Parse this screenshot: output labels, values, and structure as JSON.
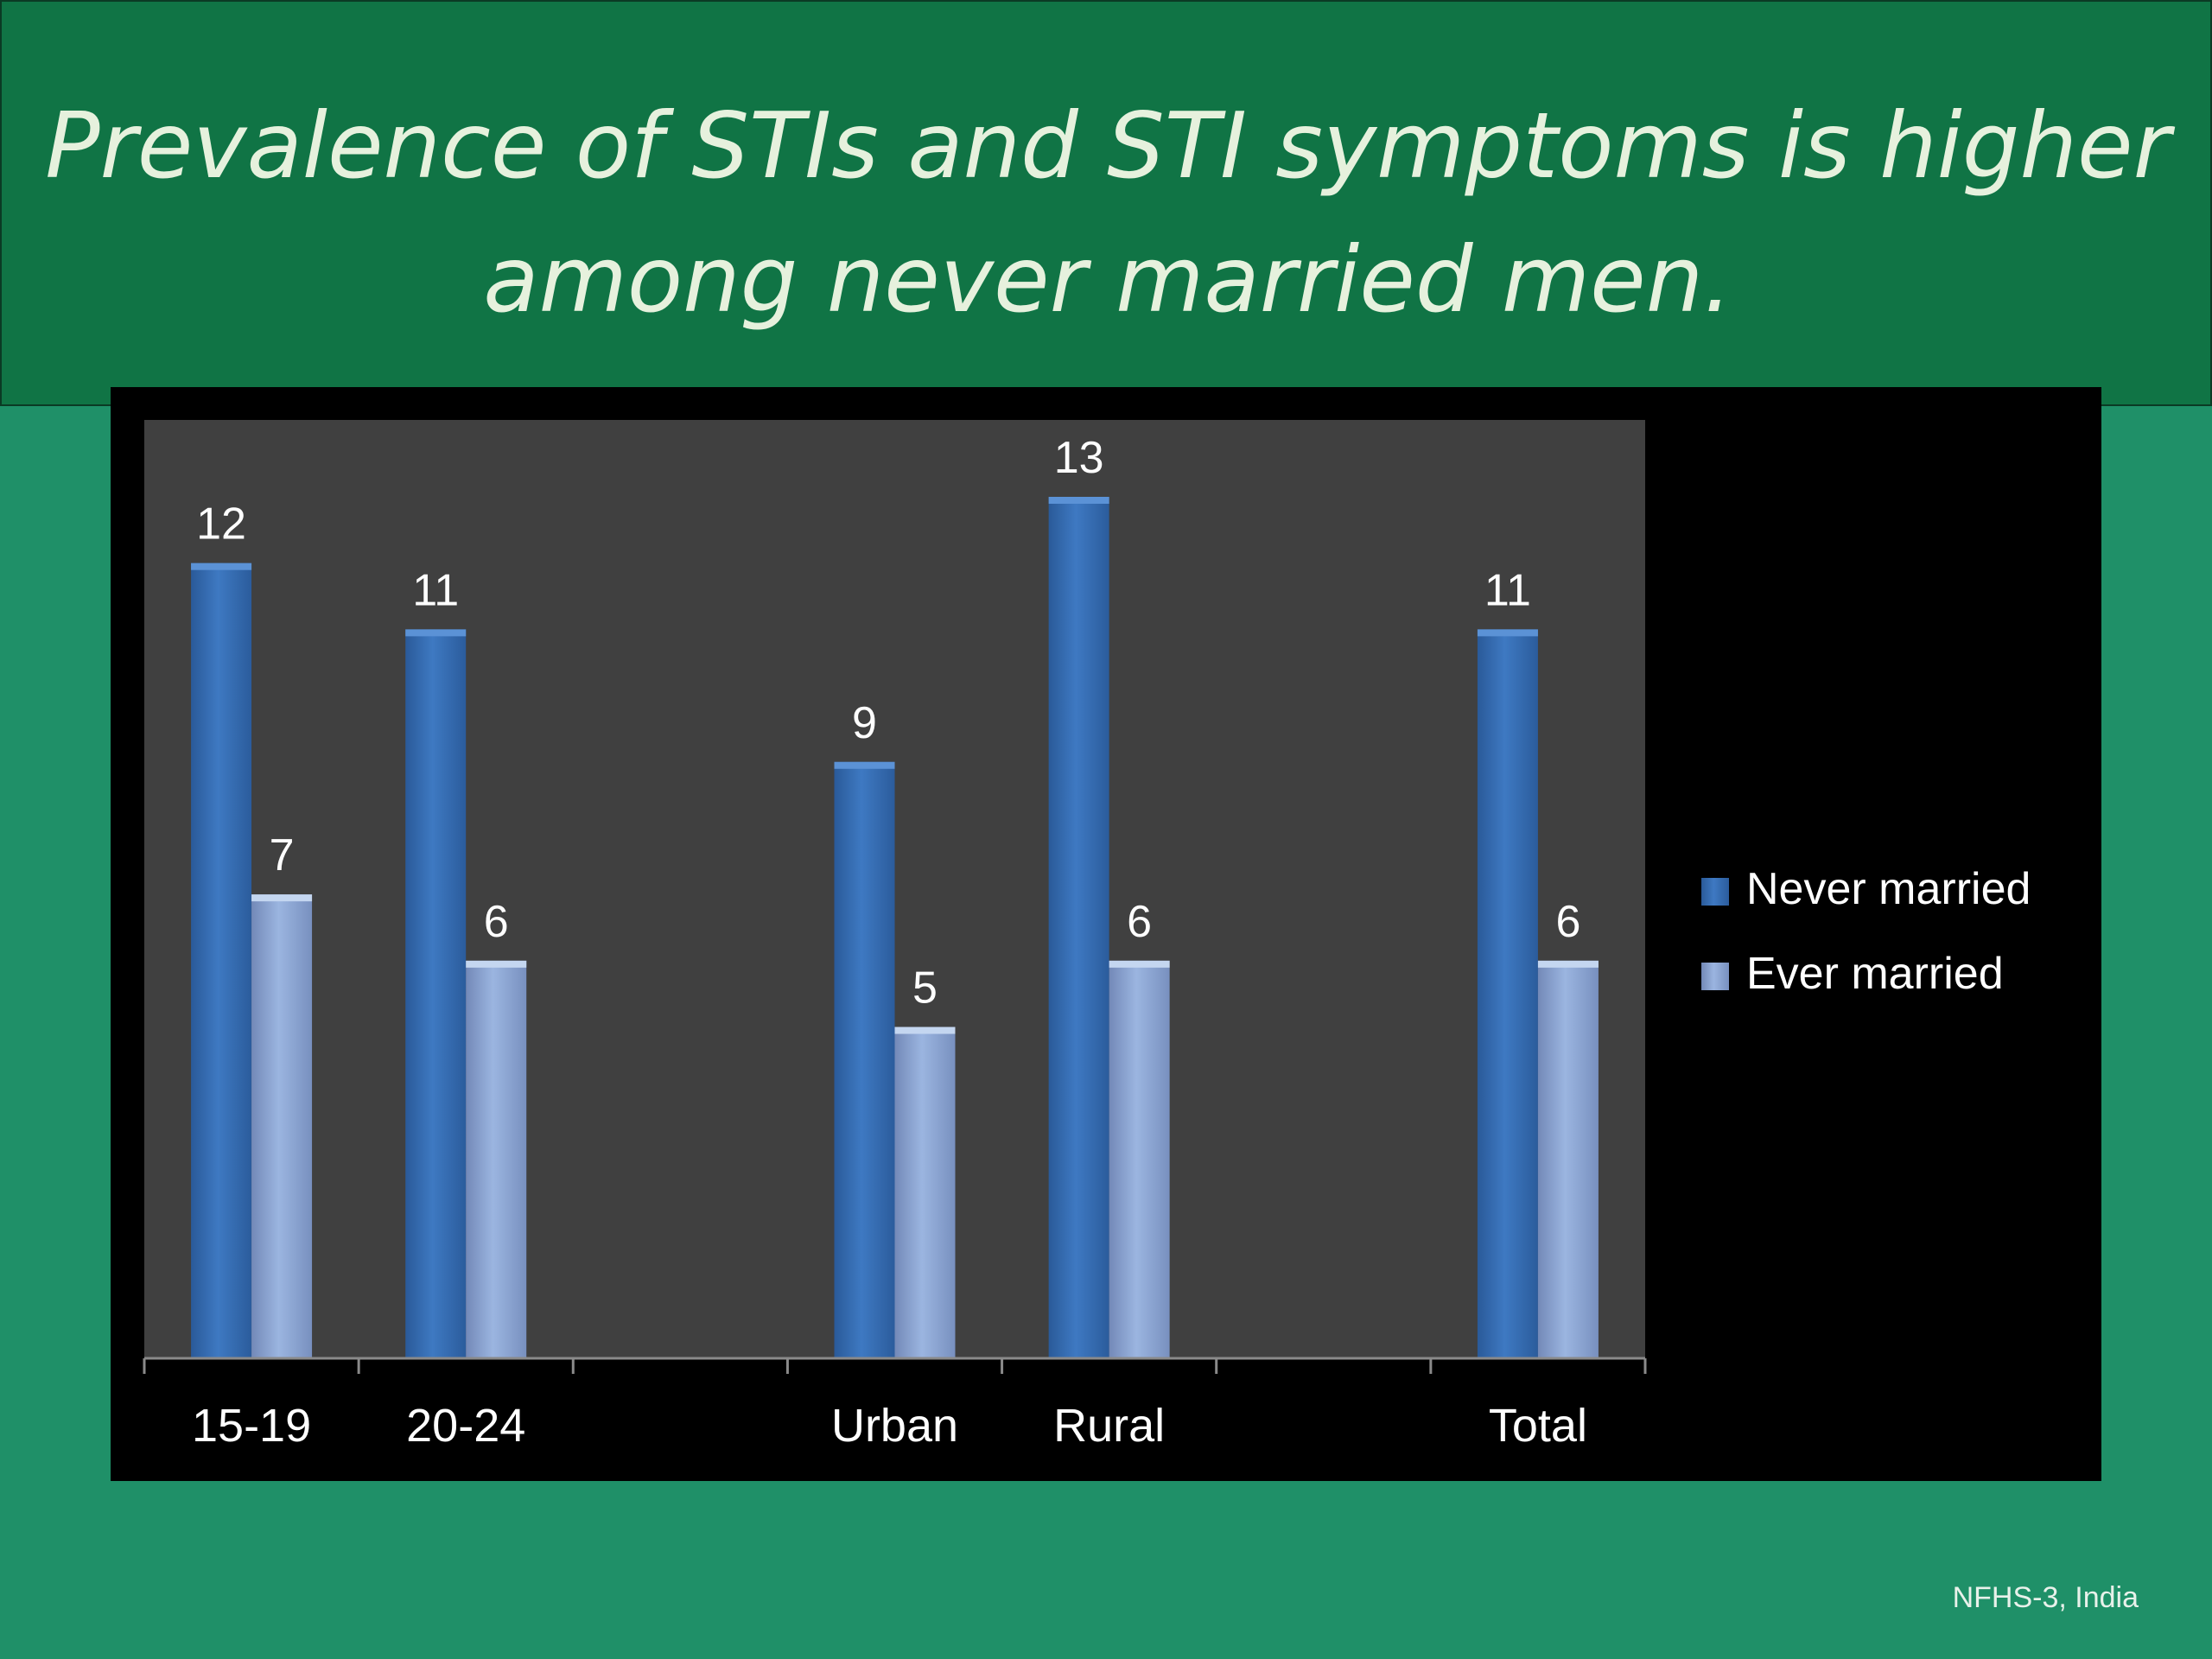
{
  "slide": {
    "title": "Prevalence of STIs and STI symptoms is higher\namong never married men.",
    "source": "NFHS-3, India"
  },
  "colors": {
    "never_married": "#3a74bd",
    "ever_married": "#8ea8d6",
    "plot_bg": "#404040",
    "panel_bg": "#000000",
    "label_text": "#ffffff"
  },
  "chart_data": {
    "type": "bar",
    "categories": [
      "15-19",
      "20-24",
      "",
      "Urban",
      "Rural",
      "",
      "Total"
    ],
    "series": [
      {
        "name": "Never married",
        "values": [
          12,
          11,
          null,
          9,
          13,
          null,
          11
        ]
      },
      {
        "name": "Ever married",
        "values": [
          7,
          6,
          null,
          5,
          6,
          null,
          6
        ]
      }
    ],
    "ylim": [
      0,
      13
    ],
    "data_labels": true,
    "legend": "right",
    "grid": false
  }
}
